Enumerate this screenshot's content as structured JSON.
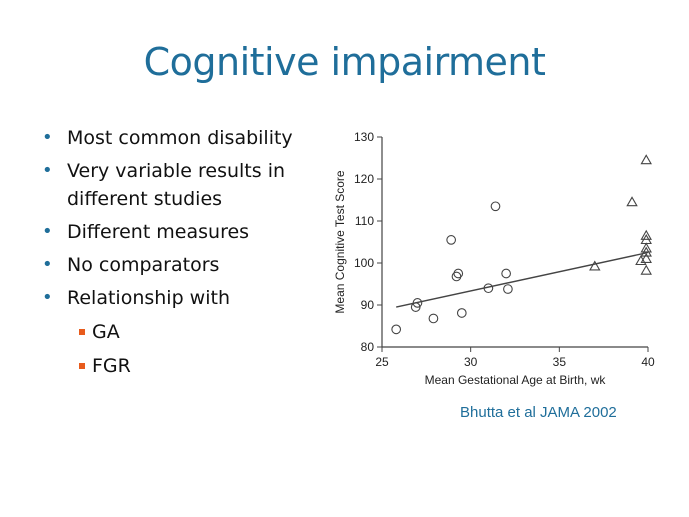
{
  "slide": {
    "title": "Cognitive impairment",
    "citation": "Bhutta et al JAMA 2002"
  },
  "bullets": [
    {
      "text": "Most common disability"
    },
    {
      "text": "Very variable results in different studies"
    },
    {
      "text": "Different measures"
    },
    {
      "text": "No comparators"
    },
    {
      "text": "Relationship with",
      "sub": [
        "GA",
        "FGR"
      ]
    }
  ],
  "colors": {
    "title": "#1f6e9a",
    "bullet_dot": "#1f6e9a",
    "sub_bullet_square": "#e85b1c",
    "chart_ink": "#444444",
    "citation": "#1f6e9a"
  },
  "chart_data": {
    "type": "scatter",
    "title": "",
    "xlabel": "Mean Gestational Age at Birth, wk",
    "ylabel": "Mean Cognitive Test Score",
    "xlim": [
      25,
      40
    ],
    "ylim": [
      80,
      130
    ],
    "xticks": [
      25,
      30,
      35,
      40
    ],
    "yticks": [
      80,
      90,
      100,
      110,
      120,
      130
    ],
    "grid": false,
    "legend": "none",
    "series": [
      {
        "marker": "circle",
        "points": [
          {
            "x": 25.8,
            "y": 84.2
          },
          {
            "x": 26.9,
            "y": 89.5
          },
          {
            "x": 27.0,
            "y": 90.5
          },
          {
            "x": 27.9,
            "y": 86.8
          },
          {
            "x": 28.9,
            "y": 105.5
          },
          {
            "x": 29.2,
            "y": 96.8
          },
          {
            "x": 29.3,
            "y": 97.5
          },
          {
            "x": 29.5,
            "y": 88.1
          },
          {
            "x": 31.0,
            "y": 94.0
          },
          {
            "x": 31.4,
            "y": 113.5
          },
          {
            "x": 32.0,
            "y": 97.5
          },
          {
            "x": 32.1,
            "y": 93.8
          }
        ]
      },
      {
        "marker": "triangle",
        "points": [
          {
            "x": 37.0,
            "y": 99.2
          },
          {
            "x": 39.1,
            "y": 114.5
          },
          {
            "x": 39.6,
            "y": 100.5
          },
          {
            "x": 39.9,
            "y": 124.5
          },
          {
            "x": 39.9,
            "y": 106.5
          },
          {
            "x": 39.9,
            "y": 105.5
          },
          {
            "x": 39.9,
            "y": 103.5
          },
          {
            "x": 39.9,
            "y": 102.5
          },
          {
            "x": 39.9,
            "y": 101.0
          },
          {
            "x": 39.9,
            "y": 98.2
          }
        ]
      }
    ],
    "trendline": {
      "x": [
        25.8,
        40.0
      ],
      "y": [
        89.5,
        102.5
      ]
    }
  }
}
